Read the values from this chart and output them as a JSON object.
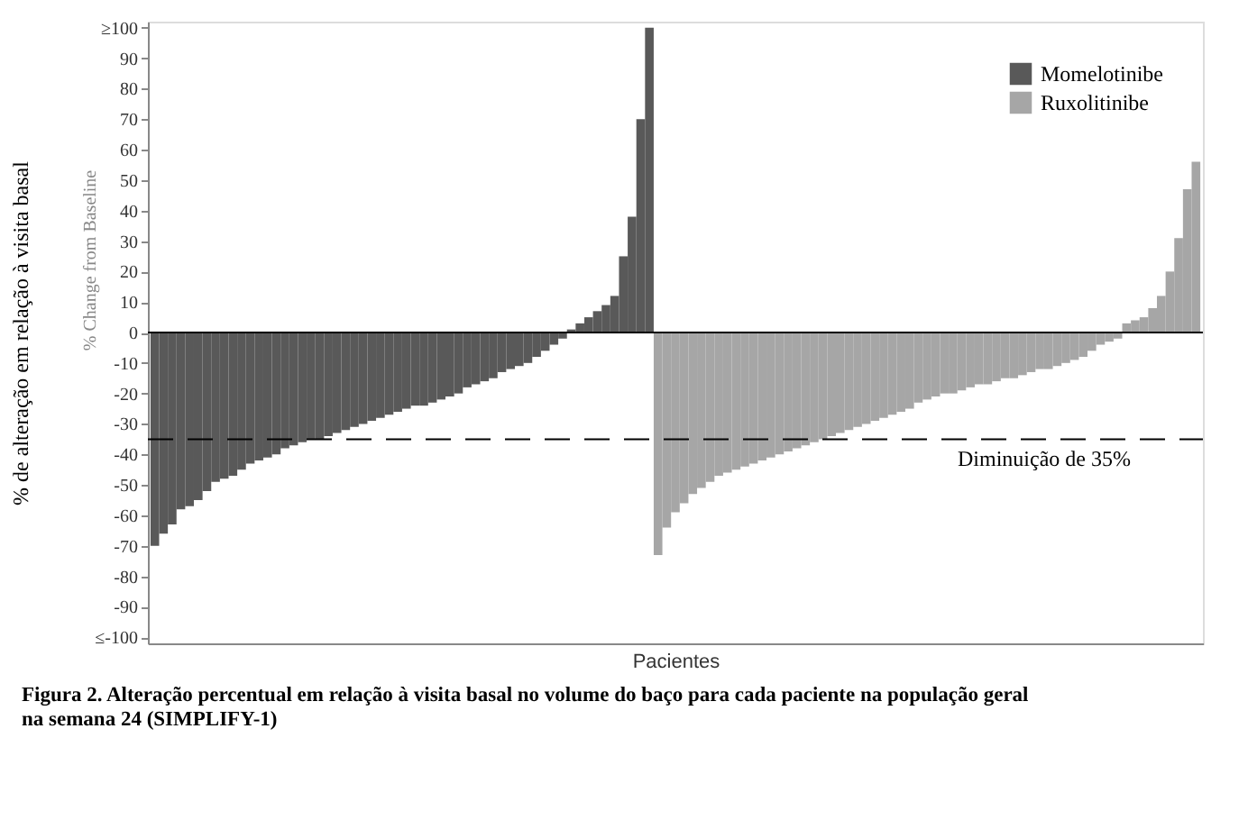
{
  "chart_data": {
    "type": "bar",
    "title": "Figura 2. Alteração percentual em relação à visita basal no volume do baço para cada paciente na população geral na semana 24 (SIMPLIFY-1)",
    "xlabel": "Pacientes",
    "ylabel": "% de alteração em relação à visita basal",
    "annotations": [
      "% Change from Baseline"
    ],
    "categories": [
      null,
      null,
      null,
      null,
      null,
      null,
      null,
      null,
      null,
      null,
      null,
      null,
      null,
      null,
      null,
      null,
      null,
      null,
      null,
      null,
      null,
      null,
      null,
      null,
      null,
      null,
      null,
      null,
      null,
      null,
      null,
      null,
      null,
      null,
      null,
      null,
      null,
      null,
      null,
      null,
      null,
      null,
      null,
      null,
      null,
      null,
      null,
      null,
      null,
      null,
      null,
      null,
      null,
      null,
      null,
      null,
      null,
      null,
      null,
      null,
      null,
      null,
      null,
      null,
      null,
      null,
      null,
      null,
      null,
      null,
      null,
      null,
      null,
      null,
      null,
      null,
      null,
      null,
      null,
      null,
      null,
      null,
      null,
      null,
      null,
      null,
      null,
      null,
      null,
      null,
      null,
      null,
      null,
      null,
      null,
      null,
      null,
      null,
      null,
      null,
      null,
      null,
      null,
      null,
      null,
      null,
      null,
      null,
      null,
      null,
      null,
      null,
      null,
      null,
      null,
      null,
      null,
      null,
      null,
      null,
      null
    ],
    "series": [
      {
        "name": "Momelotinibe",
        "color": "#595959",
        "values": [
          -70,
          -66,
          -63,
          -58,
          -57,
          -55,
          -52,
          -49,
          -48,
          -47,
          -45,
          -43,
          -42,
          -41,
          -40,
          -38,
          -37,
          -36,
          -35,
          -35,
          -34,
          -33,
          -32,
          -31,
          -30,
          -29,
          -28,
          -27,
          -26,
          -25,
          -24,
          -24,
          -23,
          -22,
          -21,
          -20,
          -18,
          -17,
          -16,
          -15,
          -13,
          -12,
          -11,
          -10,
          -8,
          -6,
          -4,
          -2,
          1,
          3,
          5,
          7,
          9,
          12,
          25,
          38,
          70,
          100,
          null,
          null,
          null,
          null,
          null,
          null,
          null,
          null,
          null,
          null,
          null,
          null,
          null,
          null,
          null,
          null,
          null,
          null,
          null,
          null,
          null,
          null,
          null,
          null,
          null,
          null,
          null,
          null,
          null,
          null,
          null,
          null,
          null,
          null,
          null,
          null,
          null,
          null,
          null,
          null,
          null,
          null,
          null,
          null,
          null,
          null,
          null,
          null,
          null,
          null,
          null,
          null,
          null,
          null,
          null,
          null,
          null,
          null,
          null,
          null,
          null,
          null,
          null
        ]
      },
      {
        "name": "Ruxolitinibe",
        "color": "#a6a6a6",
        "values": [
          null,
          null,
          null,
          null,
          null,
          null,
          null,
          null,
          null,
          null,
          null,
          null,
          null,
          null,
          null,
          null,
          null,
          null,
          null,
          null,
          null,
          null,
          null,
          null,
          null,
          null,
          null,
          null,
          null,
          null,
          null,
          null,
          null,
          null,
          null,
          null,
          null,
          null,
          null,
          null,
          null,
          null,
          null,
          null,
          null,
          null,
          null,
          null,
          null,
          null,
          null,
          null,
          null,
          null,
          null,
          null,
          null,
          null,
          -73,
          -64,
          -59,
          -56,
          -53,
          -51,
          -49,
          -47,
          -46,
          -45,
          -44,
          -43,
          -42,
          -41,
          -40,
          -39,
          -38,
          -37,
          -36,
          -35,
          -34,
          -33,
          -32,
          -31,
          -30,
          -29,
          -28,
          -27,
          -26,
          -25,
          -23,
          -22,
          -21,
          -20,
          -20,
          -19,
          -18,
          -17,
          -17,
          -16,
          -15,
          -15,
          -14,
          -13,
          -12,
          -12,
          -11,
          -10,
          -9,
          -8,
          -6,
          -4,
          -3,
          -2,
          3,
          4,
          5,
          8,
          12,
          20,
          31,
          47,
          56
        ]
      }
    ],
    "ylim": [
      -102,
      102
    ],
    "yticks": [
      {
        "value": -100,
        "label": "≤-100"
      },
      -90,
      -80,
      -70,
      -60,
      -50,
      -40,
      -30,
      -20,
      -10,
      0,
      10,
      20,
      30,
      40,
      50,
      60,
      70,
      80,
      90,
      {
        "value": 100,
        "label": "≥100"
      }
    ],
    "ref_lines": [
      {
        "axis": "y",
        "value": 0,
        "color": "#000000",
        "line_style": "solid"
      },
      {
        "axis": "y",
        "value": -35,
        "label": "Diminuição de 35%",
        "color": "#000000",
        "line_style": "dashed"
      }
    ],
    "legend": "top right",
    "grid": false,
    "tick_labels": "y"
  }
}
